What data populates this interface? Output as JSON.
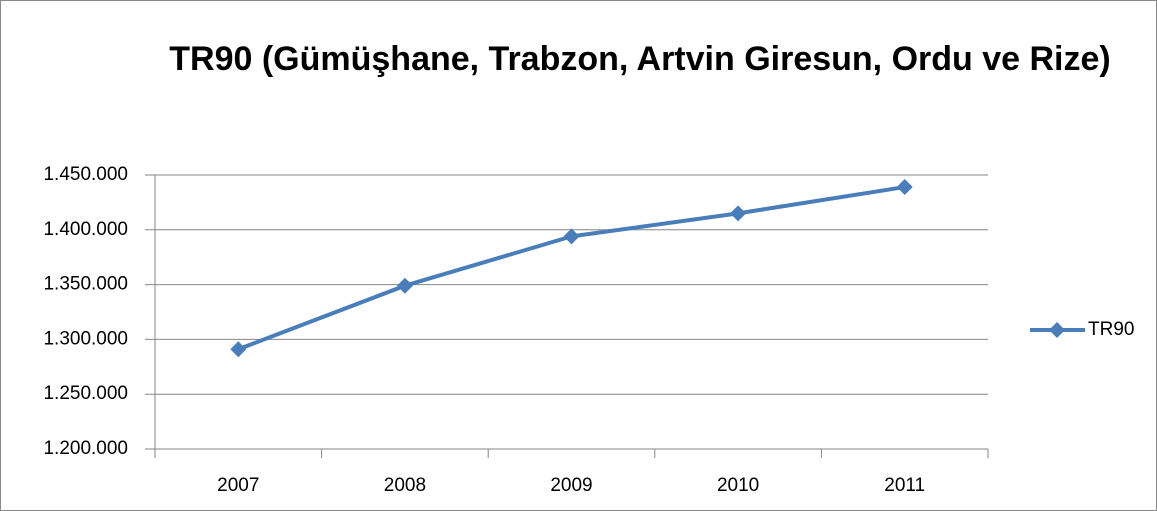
{
  "chart_data": {
    "type": "line",
    "title": "TR90 (Gümüşhane, Trabzon, Artvin Giresun, Ordu ve Rize)",
    "categories": [
      "2007",
      "2008",
      "2009",
      "2010",
      "2011"
    ],
    "series": [
      {
        "name": "TR90",
        "color": "#4a7ebb",
        "values": [
          1291000,
          1349000,
          1394000,
          1415000,
          1439000
        ]
      }
    ],
    "ylim": [
      1200000,
      1450000
    ],
    "yticks": [
      {
        "value": 1200000,
        "label": "1.200.000"
      },
      {
        "value": 1250000,
        "label": "1.250.000"
      },
      {
        "value": 1300000,
        "label": "1.300.000"
      },
      {
        "value": 1350000,
        "label": "1.350.000"
      },
      {
        "value": 1400000,
        "label": "1.400.000"
      },
      {
        "value": 1450000,
        "label": "1.450.000"
      }
    ],
    "grid": true,
    "legend": "right"
  }
}
